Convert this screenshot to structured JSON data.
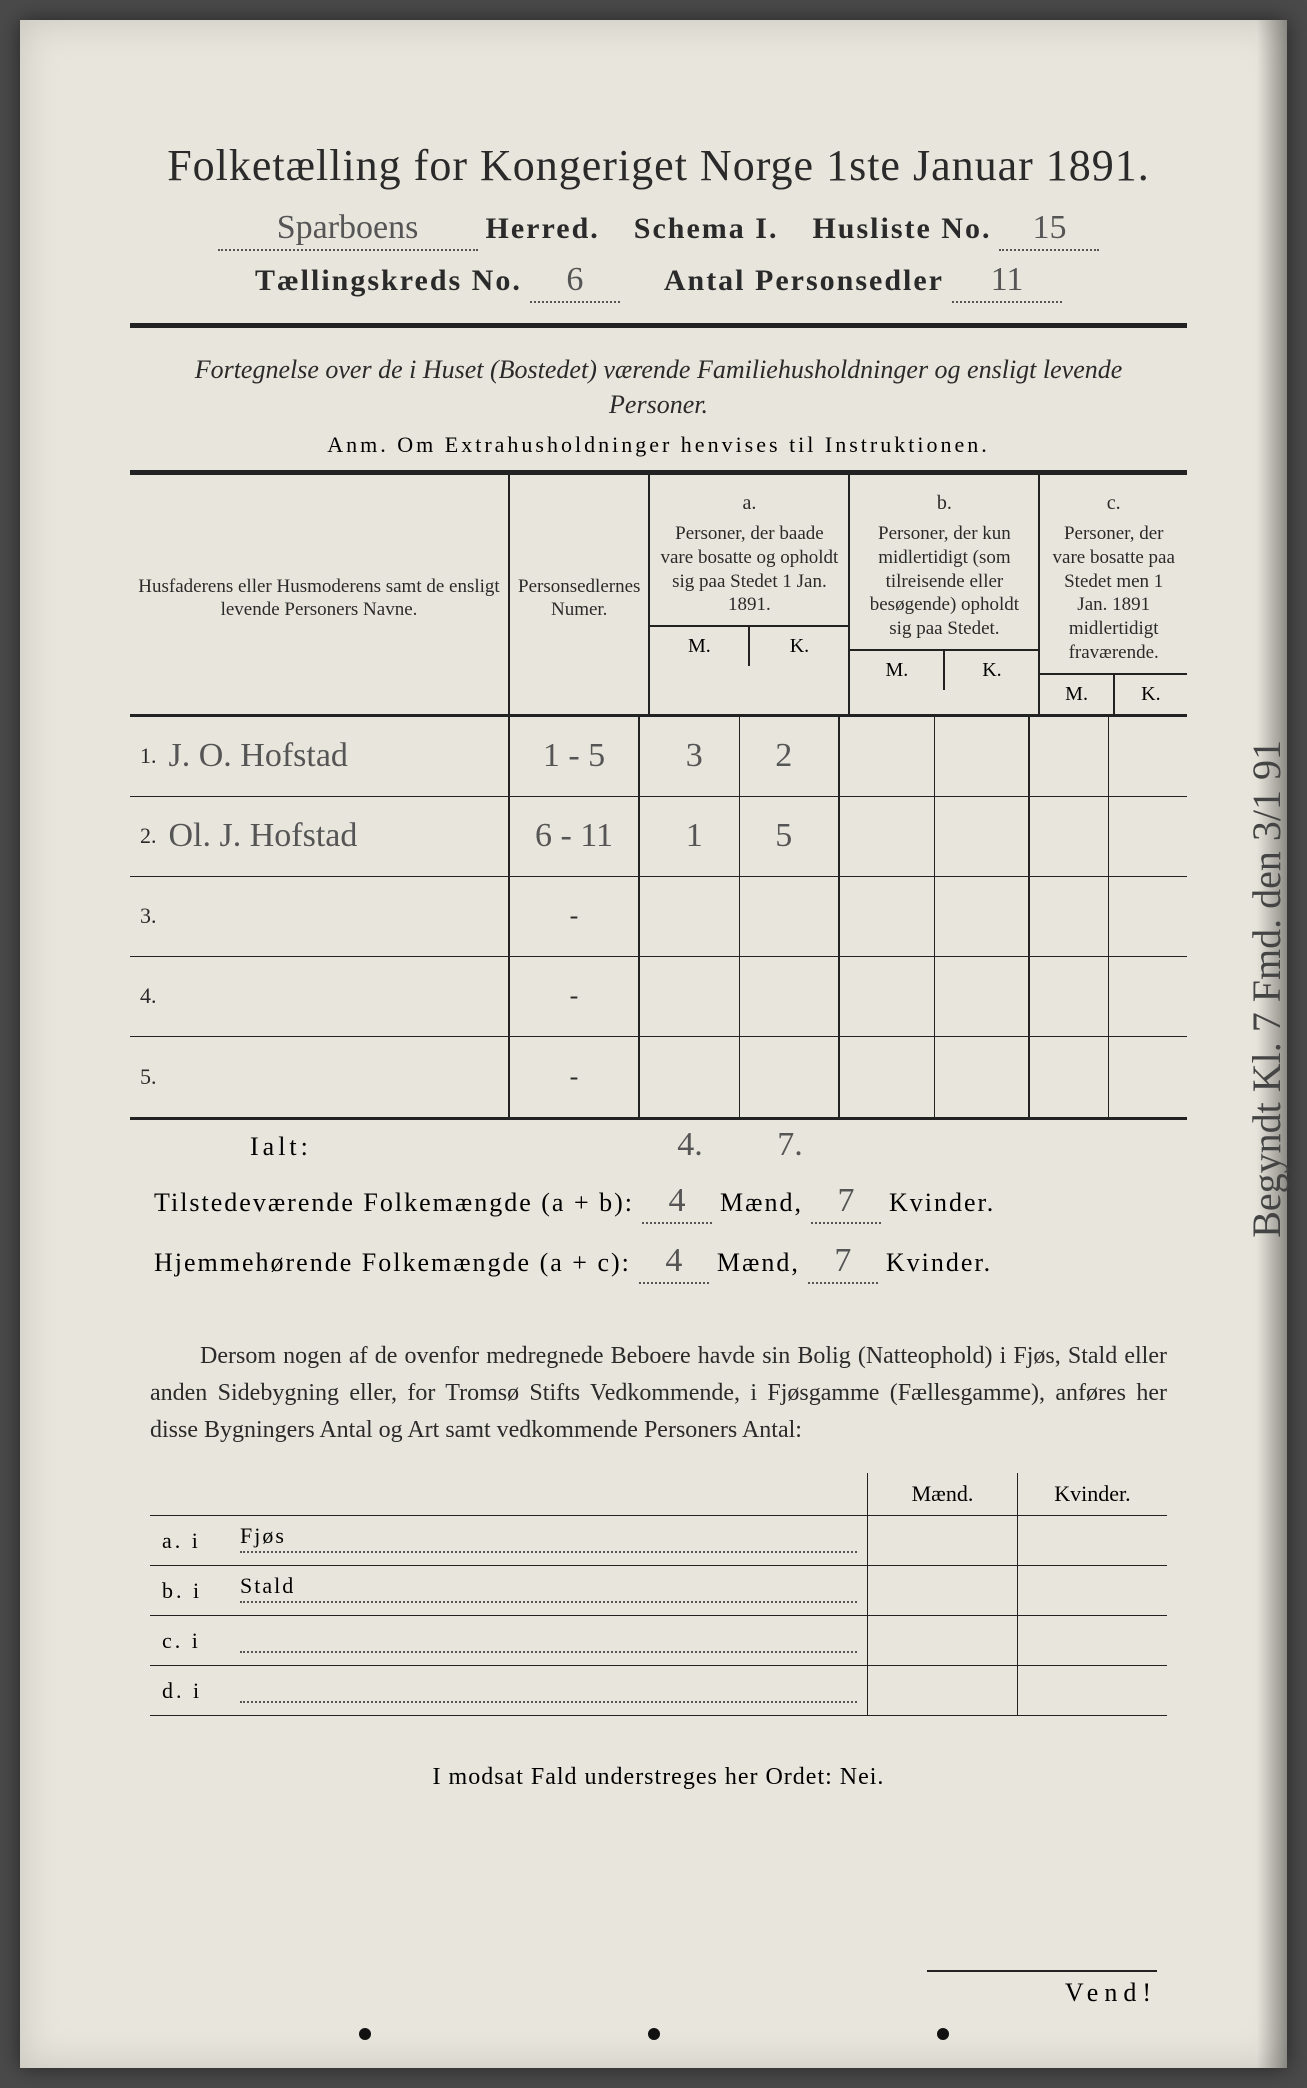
{
  "colors": {
    "page_bg": "#e8e6dc",
    "outer_bg": "#4a4a4a",
    "text": "#2a2a2a",
    "rule": "#222222",
    "handwriting": "#555555",
    "dotted": "#555555"
  },
  "typography": {
    "title_fontsize_pt": 32,
    "header_fontsize_pt": 22,
    "body_fontsize_pt": 18,
    "hand_font": "cursive"
  },
  "title": "Folketælling for Kongeriget Norge 1ste Januar 1891.",
  "header1": {
    "herred_value": "Sparboens",
    "herred_label": "Herred.",
    "schema_label": "Schema I.",
    "husliste_label": "Husliste No.",
    "husliste_value": "15"
  },
  "header2": {
    "kreds_label": "Tællingskreds No.",
    "kreds_value": "6",
    "personsedler_label": "Antal Personsedler",
    "personsedler_value": "11"
  },
  "subtitle": "Fortegnelse over de i Huset (Bostedet) værende Familiehusholdninger og ensligt levende Personer.",
  "anm": "Anm.  Om Extrahusholdninger henvises til Instruktionen.",
  "table": {
    "col_names_header": "Husfaderens eller Husmoderens samt de ensligt levende Personers Navne.",
    "col_num_header": "Personsedlernes Numer.",
    "col_a": {
      "label": "a.",
      "text": "Personer, der baade vare bosatte og opholdt sig paa Stedet 1 Jan. 1891."
    },
    "col_b": {
      "label": "b.",
      "text": "Personer, der kun midlertidigt (som tilreisende eller besøgende) opholdt sig paa Stedet."
    },
    "col_c": {
      "label": "c.",
      "text": "Personer, der vare bosatte paa Stedet men 1 Jan. 1891 midlertidigt fraværende."
    },
    "mk": {
      "m": "M.",
      "k": "K."
    },
    "rows": [
      {
        "n": "1.",
        "name": "J. O. Hofstad",
        "num": "1 - 5",
        "a_m": "3",
        "a_k": "2",
        "b_m": "",
        "b_k": "",
        "c_m": "",
        "c_k": ""
      },
      {
        "n": "2.",
        "name": "Ol. J. Hofstad",
        "num": "6 - 11",
        "a_m": "1",
        "a_k": "5",
        "b_m": "",
        "b_k": "",
        "c_m": "",
        "c_k": ""
      },
      {
        "n": "3.",
        "name": "",
        "num": "-",
        "a_m": "",
        "a_k": "",
        "b_m": "",
        "b_k": "",
        "c_m": "",
        "c_k": ""
      },
      {
        "n": "4.",
        "name": "",
        "num": "-",
        "a_m": "",
        "a_k": "",
        "b_m": "",
        "b_k": "",
        "c_m": "",
        "c_k": ""
      },
      {
        "n": "5.",
        "name": "",
        "num": "-",
        "a_m": "",
        "a_k": "",
        "b_m": "",
        "b_k": "",
        "c_m": "",
        "c_k": ""
      }
    ],
    "ialt_label": "Ialt:",
    "ialt_m": "4.",
    "ialt_k": "7."
  },
  "summary1": {
    "label": "Tilstedeværende Folkemængde (a + b):",
    "maend": "4",
    "maend_label": "Mænd,",
    "kvinder": "7",
    "kvinder_label": "Kvinder."
  },
  "summary2": {
    "label": "Hjemmehørende Folkemængde (a + c):",
    "maend": "4",
    "maend_label": "Mænd,",
    "kvinder": "7",
    "kvinder_label": "Kvinder."
  },
  "paragraph": "Dersom nogen af de ovenfor medregnede Beboere havde sin Bolig (Natteophold) i Fjøs, Stald eller anden Sidebygning eller, for Tromsø Stifts Vedkommende, i Fjøsgamme (Fællesgamme), anføres her disse Bygningers Antal og Art samt vedkommende Personers Antal:",
  "lower_table": {
    "head_m": "Mænd.",
    "head_k": "Kvinder.",
    "rows": [
      {
        "lab": "a.  i",
        "txt": "Fjøs"
      },
      {
        "lab": "b.  i",
        "txt": "Stald"
      },
      {
        "lab": "c.  i",
        "txt": ""
      },
      {
        "lab": "d.  i",
        "txt": ""
      }
    ]
  },
  "nei_line": {
    "pre": "I modsat Fald understreges her Ordet: ",
    "word": "Nei."
  },
  "vend": "Vend!",
  "margin_note": "Begyndt Kl. 7 Fmd. den 3/1 91"
}
